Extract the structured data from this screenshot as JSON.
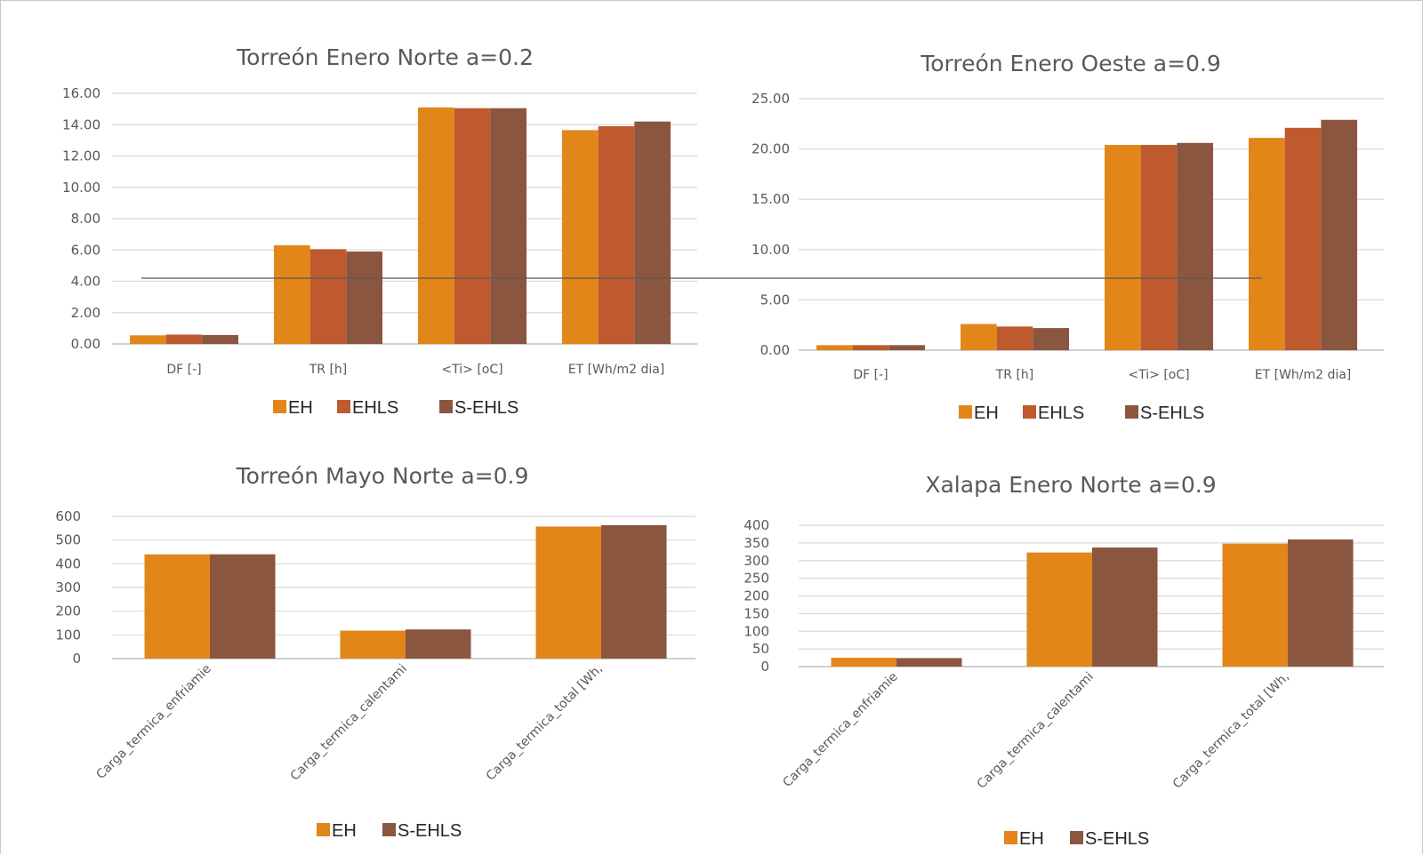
{
  "colors": {
    "EH": "#e2861a",
    "EHLS": "#bf5a2e",
    "S-EHLS": "#8b5640",
    "gridline": "#d9d9d9",
    "axis": "#bfbfbf",
    "text": "#595959"
  },
  "chart_data": [
    {
      "type": "bar",
      "title": "Torreón Enero Norte a=0.2",
      "categories": [
        "DF [-]",
        "TR [h]",
        "<Ti> [oC]",
        "ET [Wh/m2 dia]"
      ],
      "series": [
        {
          "name": "EH",
          "values": [
            0.55,
            6.3,
            15.1,
            13.65
          ]
        },
        {
          "name": "EHLS",
          "values": [
            0.6,
            6.05,
            15.05,
            13.9
          ]
        },
        {
          "name": "S-EHLS",
          "values": [
            0.57,
            5.9,
            15.05,
            14.2
          ]
        }
      ],
      "yticks": [
        "0.00",
        "2.00",
        "4.00",
        "6.00",
        "8.00",
        "10.00",
        "12.00",
        "14.00",
        "16.00"
      ],
      "ylim": [
        0,
        16
      ],
      "xlabel": "",
      "ylabel": "",
      "grid": true,
      "legend": "bottom"
    },
    {
      "type": "bar",
      "title": "Torreón Enero Oeste a=0.9",
      "categories": [
        "DF [-]",
        "TR [h]",
        "<Ti> [oC]",
        "ET [Wh/m2 dia]"
      ],
      "series": [
        {
          "name": "EH",
          "values": [
            0.5,
            2.6,
            20.4,
            21.1
          ]
        },
        {
          "name": "EHLS",
          "values": [
            0.5,
            2.35,
            20.4,
            22.1
          ]
        },
        {
          "name": "S-EHLS",
          "values": [
            0.5,
            2.2,
            20.6,
            22.9
          ]
        }
      ],
      "yticks": [
        "0.00",
        "5.00",
        "10.00",
        "15.00",
        "20.00",
        "25.00"
      ],
      "ylim": [
        0,
        25
      ],
      "xlabel": "",
      "ylabel": "",
      "grid": true,
      "legend": "bottom"
    },
    {
      "type": "bar",
      "title": "Torreón Mayo Norte a=0.9",
      "categories": [
        "Carga_termica_enfriamie",
        "Carga_termica_calentami",
        "Carga_termica_total [Wh,"
      ],
      "series": [
        {
          "name": "EH",
          "values": [
            440,
            118,
            557
          ]
        },
        {
          "name": "S-EHLS",
          "values": [
            440,
            123,
            563
          ]
        }
      ],
      "yticks": [
        "0",
        "100",
        "200",
        "300",
        "400",
        "500",
        "600"
      ],
      "ylim": [
        0,
        600
      ],
      "xlabel": "",
      "ylabel": "",
      "grid": true,
      "legend": "bottom"
    },
    {
      "type": "bar",
      "title": "Xalapa Enero Norte a=0.9",
      "categories": [
        "Carga_termica_enfriamie",
        "Carga_termica_calentami",
        "Carga_termica_total [Wh,"
      ],
      "series": [
        {
          "name": "EH",
          "values": [
            25,
            323,
            348
          ]
        },
        {
          "name": "S-EHLS",
          "values": [
            24,
            337,
            360
          ]
        }
      ],
      "yticks": [
        "0",
        "50",
        "100",
        "150",
        "200",
        "250",
        "300",
        "350",
        "400"
      ],
      "ylim": [
        0,
        400
      ],
      "xlabel": "",
      "ylabel": "",
      "grid": true,
      "legend": "bottom"
    }
  ]
}
